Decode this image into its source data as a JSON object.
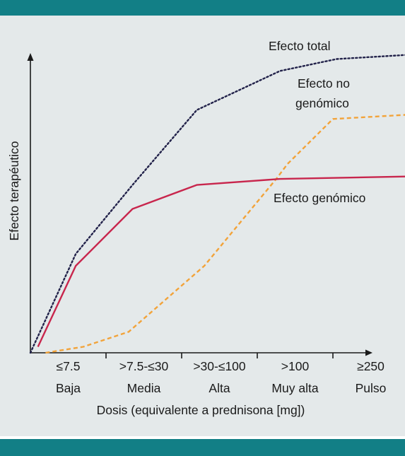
{
  "chart_data": {
    "type": "line",
    "title": "",
    "xlabel": "Dosis (equivalente a prednisona [mg])",
    "ylabel": "Efecto terapéutico",
    "categories": [
      {
        "range": "≤7.5",
        "level": "Baja"
      },
      {
        "range": ">7.5-≤30",
        "level": "Media"
      },
      {
        "range": ">30-≤100",
        "level": "Alta"
      },
      {
        "range": ">100",
        "level": "Muy alta"
      },
      {
        "range": "≥250",
        "level": "Pulso"
      }
    ],
    "x_ticks": [
      0,
      1,
      2,
      3,
      4,
      5
    ],
    "xlim": [
      0,
      5.6
    ],
    "ylim": [
      0,
      100
    ],
    "y_tick_labels": false,
    "grid": false,
    "series": [
      {
        "name": "Efecto total",
        "color": "#22224a",
        "style": "dotted",
        "x": [
          0,
          0.6,
          1.35,
          2.2,
          3.3,
          4.05,
          5.4
        ],
        "y": [
          0,
          33,
          56,
          81,
          94,
          98,
          100
        ]
      },
      {
        "name": "Efecto no genómico",
        "color": "#f2a33a",
        "style": "dashed",
        "x": [
          0.2,
          0.7,
          1.3,
          2.3,
          3.25,
          3.4,
          4.0,
          5.4
        ],
        "y": [
          0,
          2,
          7,
          29,
          58,
          63,
          78,
          80
        ]
      },
      {
        "name": "Efecto genómico",
        "color": "#c8264d",
        "style": "solid",
        "x": [
          0.1,
          0.6,
          1.35,
          2.2,
          3.3,
          5.4
        ],
        "y": [
          2,
          29,
          48,
          56,
          58,
          59
        ]
      }
    ]
  }
}
